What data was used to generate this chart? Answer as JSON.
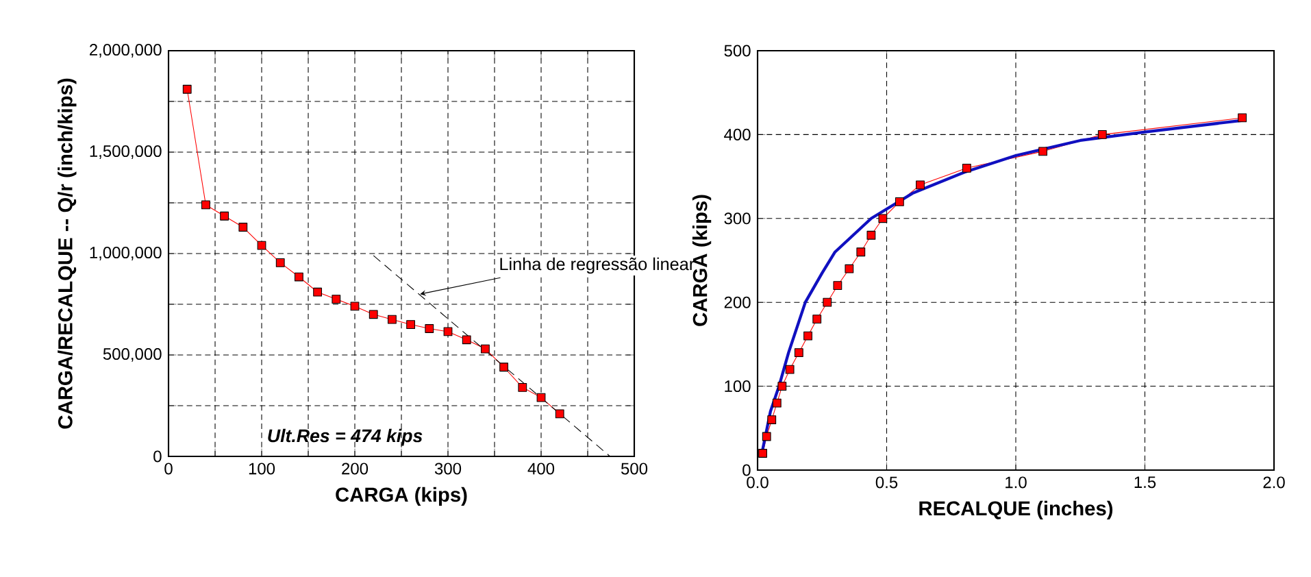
{
  "chart_data": [
    {
      "type": "line",
      "xlabel": "CARGA (kips)",
      "ylabel": "CARGA/RECALQUE -- Q/r (inch/kips)",
      "xlim": [
        0,
        500
      ],
      "ylim": [
        0,
        2000000
      ],
      "xticks": [
        0,
        {
          "value": 50,
          "label": null
        },
        100,
        {
          "value": 150,
          "label": null
        },
        200,
        {
          "value": 250,
          "label": null
        },
        300,
        {
          "value": 350,
          "label": null
        },
        400,
        {
          "value": 450,
          "label": null
        },
        500
      ],
      "yticks": [
        0,
        {
          "value": 250000,
          "label": null
        },
        {
          "value": 500000,
          "label": "500,000"
        },
        {
          "value": 750000,
          "label": null
        },
        {
          "value": 1000000,
          "label": "1,000,000"
        },
        {
          "value": 1250000,
          "label": null
        },
        {
          "value": 1500000,
          "label": "1,500,000"
        },
        {
          "value": 1750000,
          "label": null
        },
        {
          "value": 2000000,
          "label": "2,000,000"
        }
      ],
      "grid": true,
      "series": [
        {
          "color": "#ff0000",
          "marker": "square",
          "line_style": "solid",
          "x": [
            20,
            40,
            60,
            80,
            100,
            120,
            140,
            160,
            180,
            200,
            220,
            240,
            260,
            280,
            300,
            320,
            340,
            360,
            380,
            400,
            420
          ],
          "values": [
            1810000,
            1240000,
            1185000,
            1130000,
            1040000,
            955000,
            885000,
            810000,
            775000,
            740000,
            700000,
            675000,
            650000,
            630000,
            615000,
            575000,
            530000,
            440000,
            340000,
            290000,
            210000
          ]
        },
        {
          "color": "#000000",
          "marker": "none",
          "line_style": "dashed",
          "x": [
            220,
            474
          ],
          "values": [
            990000,
            0
          ]
        }
      ],
      "annotations": [
        {
          "text": "Linha de regressão linear",
          "x": 270,
          "y": 800000
        },
        "Ult.Res = 474 kips"
      ]
    },
    {
      "type": "line",
      "xlabel": "RECALQUE (inches)",
      "ylabel": "CARGA (kips)",
      "xlim": [
        0,
        2
      ],
      "ylim": [
        0,
        500
      ],
      "xticks": [
        {
          "value": 0,
          "label": "0.0"
        },
        0.5,
        {
          "value": 1,
          "label": "1.0"
        },
        1.5,
        {
          "value": 2,
          "label": "2.0"
        }
      ],
      "yticks": [
        0,
        100,
        200,
        300,
        400,
        500
      ],
      "grid": true,
      "series": [
        {
          "color": "#ff0000",
          "marker": "square",
          "line_style": "solid",
          "x": [
            0.02,
            0.035,
            0.055,
            0.075,
            0.095,
            0.125,
            0.16,
            0.195,
            0.23,
            0.27,
            0.31,
            0.355,
            0.4,
            0.44,
            0.485,
            0.55,
            0.63,
            0.81,
            1.105,
            1.335,
            1.877
          ],
          "values": [
            20,
            40,
            60,
            80,
            100,
            120,
            140,
            160,
            180,
            200,
            220,
            240,
            260,
            280,
            300,
            320,
            340,
            360,
            380,
            400,
            420
          ]
        },
        {
          "color": "#1010c0",
          "marker": "none",
          "line_style": "solid",
          "x": [
            0.02,
            0.05,
            0.083,
            0.12,
            0.185,
            0.25,
            0.3,
            0.44,
            0.6,
            0.8,
            1.0,
            1.25,
            1.5,
            1.88
          ],
          "values": [
            25,
            70,
            100,
            140,
            200,
            235,
            260,
            300,
            330,
            355,
            375,
            393,
            403,
            417
          ]
        }
      ]
    }
  ]
}
